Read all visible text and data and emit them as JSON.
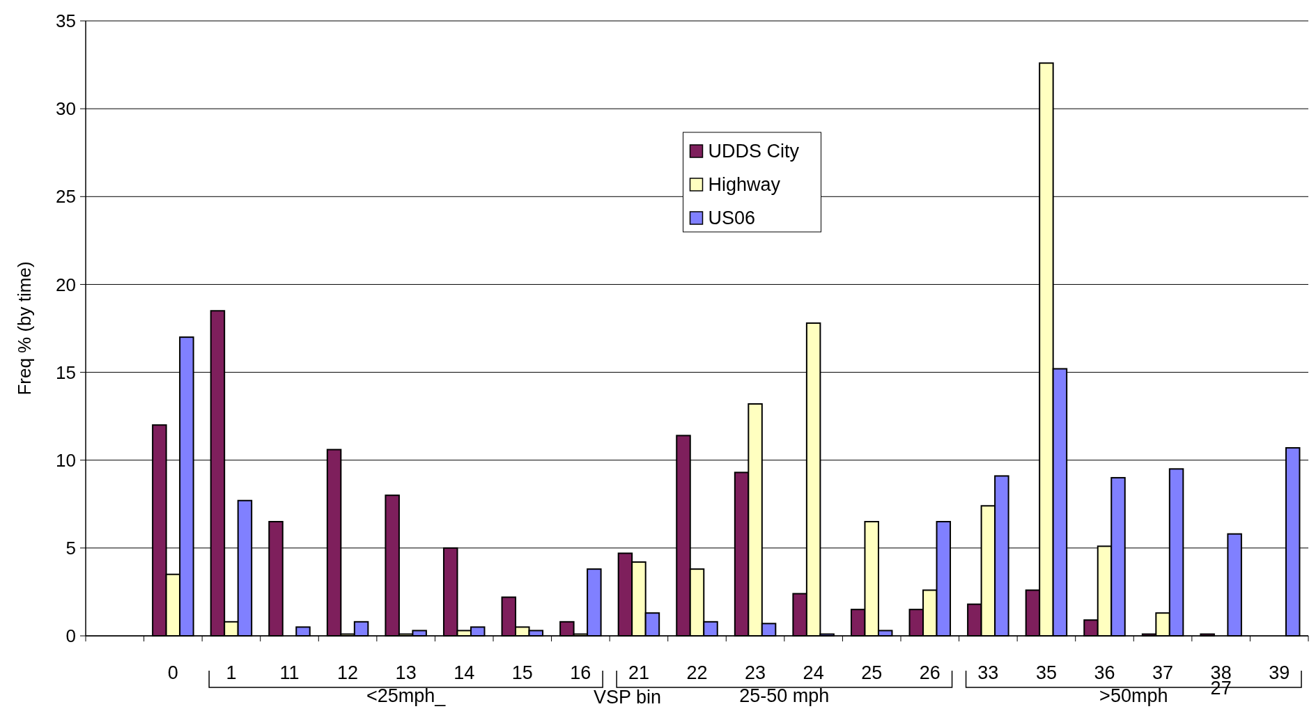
{
  "chart_data": {
    "type": "bar",
    "ylabel": "Freq % (by time)",
    "categories": [
      null,
      "0",
      "1",
      "11",
      "12",
      "13",
      "14",
      "15",
      "16",
      "21",
      "22",
      "23",
      "24",
      "25",
      "26",
      "33",
      "35",
      "36",
      "37",
      "38",
      "39"
    ],
    "series": [
      {
        "name": "UDDS City",
        "color": "#7e1f5c",
        "values": [
          null,
          12.0,
          18.5,
          6.5,
          10.6,
          8.0,
          5.0,
          2.2,
          0.8,
          4.7,
          11.4,
          9.3,
          2.4,
          1.5,
          1.5,
          1.8,
          2.6,
          0.9,
          0.1,
          0.1,
          0
        ]
      },
      {
        "name": "Highway",
        "color": "#ffffc0",
        "values": [
          null,
          3.5,
          0.8,
          0,
          0.1,
          0.1,
          0.3,
          0.5,
          0.1,
          4.2,
          3.8,
          13.2,
          17.8,
          6.5,
          2.6,
          7.4,
          32.6,
          5.1,
          1.3,
          0,
          0
        ]
      },
      {
        "name": "US06",
        "color": "#8080ff",
        "values": [
          null,
          17.0,
          7.7,
          0.5,
          0.8,
          0.3,
          0.5,
          0.3,
          3.8,
          1.3,
          0.8,
          0.7,
          0.1,
          0.3,
          6.5,
          9.1,
          15.2,
          9.0,
          9.5,
          5.8,
          10.7
        ]
      }
    ],
    "ylim": [
      0,
      35
    ],
    "yticks": [
      0,
      5,
      10,
      15,
      20,
      25,
      30,
      35
    ],
    "grid": "y",
    "legend": "top",
    "annotations": [
      "<25mph_",
      "VSP bin",
      "25-50 mph",
      ">50mph",
      "27"
    ]
  }
}
